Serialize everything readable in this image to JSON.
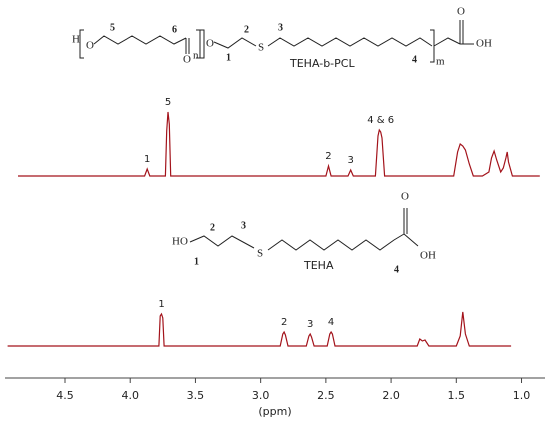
{
  "structures": [
    {
      "atoms": [
        "H",
        "O",
        "O",
        "O",
        "S",
        "O",
        "OH"
      ],
      "sub": [
        "n",
        "m"
      ],
      "locants": [
        "5",
        "6",
        "1",
        "2",
        "3",
        "4"
      ],
      "name": "TEHA-b-PCL"
    },
    {
      "atoms": [
        "HO",
        "S",
        "O",
        "OH"
      ],
      "locants": [
        "2",
        "1",
        "3",
        "4"
      ],
      "name": "TEHA"
    }
  ],
  "chart_data": {
    "type": "line",
    "xlabel": "(ppm)",
    "xlim": [
      4.96,
      0.82
    ],
    "ylim": [
      0,
      70
    ],
    "color": "#a3131b",
    "xticks": [
      4.5,
      {
        "value": 4,
        "label": "4.0"
      },
      3.5,
      {
        "value": 3,
        "label": "3.0"
      },
      2.5,
      {
        "value": 2,
        "label": "2.0"
      },
      1.5,
      {
        "value": 1,
        "label": "1.0"
      }
    ],
    "series": [
      {
        "x": [
          4.86,
          3.89,
          3.87,
          3.85,
          3.73,
          3.72,
          3.71,
          3.7,
          3.69,
          3.67,
          2.5,
          2.48,
          2.46,
          2.33,
          2.31,
          2.29,
          2.12,
          2.1,
          2.09,
          2.08,
          2.07,
          2.05,
          1.52,
          1.49,
          1.47,
          1.45,
          1.43,
          1.4,
          1.37,
          1.3,
          1.25,
          1.23,
          1.21,
          1.19,
          1.16,
          1.14,
          1.12,
          1.11,
          1.1,
          1.07,
          0.86
        ],
        "values": [
          0,
          0,
          7,
          0,
          0,
          45,
          64,
          52,
          0,
          0,
          0,
          10,
          0,
          0,
          6,
          0,
          0,
          40,
          46,
          44,
          38,
          0,
          0,
          24,
          32,
          30,
          26,
          12,
          0,
          0,
          4,
          18,
          25,
          16,
          4,
          8,
          18,
          24,
          14,
          0,
          0
        ],
        "peak_labels": [
          {
            "text": "1",
            "x": 3.87
          },
          {
            "text": "5",
            "x": 3.71
          },
          {
            "text": "2",
            "x": 2.48
          },
          {
            "text": "3",
            "x": 2.31
          },
          {
            "text": "4 & 6",
            "x": 2.08
          }
        ]
      },
      {
        "x": [
          4.94,
          3.78,
          3.77,
          3.76,
          3.75,
          3.74,
          2.85,
          2.83,
          2.82,
          2.81,
          2.79,
          2.65,
          2.63,
          2.62,
          2.61,
          2.59,
          2.49,
          2.47,
          2.46,
          2.45,
          2.43,
          1.8,
          1.78,
          1.76,
          1.74,
          1.71,
          1.5,
          1.47,
          1.45,
          1.43,
          1.4,
          1.08
        ],
        "values": [
          0,
          0,
          30,
          32,
          28,
          0,
          0,
          12,
          14,
          11,
          0,
          0,
          10,
          12,
          9,
          0,
          0,
          12,
          14,
          12,
          0,
          0,
          7,
          5,
          6,
          0,
          0,
          10,
          34,
          12,
          0,
          0
        ],
        "peak_labels": [
          {
            "text": "1",
            "x": 3.76
          },
          {
            "text": "2",
            "x": 2.82
          },
          {
            "text": "3",
            "x": 2.62
          },
          {
            "text": "4",
            "x": 2.46
          }
        ]
      }
    ]
  }
}
